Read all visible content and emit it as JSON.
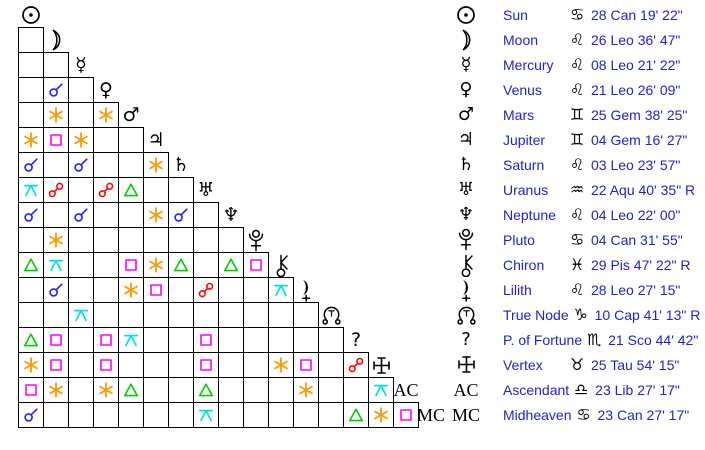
{
  "ui": {
    "background": "#ffffff",
    "grid_line_color": "#000000",
    "glyph_color": "#000000",
    "legend_text_color": "#2222cc"
  },
  "sign_glyphs": {
    "Can": "♋",
    "Leo": "♌",
    "Gem": "♊",
    "Aqu": "♒",
    "Pis": "♓",
    "Cap": "♑",
    "Sco": "♏",
    "Tau": "♉",
    "Lib": "♎"
  },
  "planet_glyphs_unicode": {
    "mercury": "☿",
    "venus": "♀",
    "mars": "♂",
    "jupiter": "♃",
    "saturn": "♄",
    "uranus": "♅",
    "neptune": "♆"
  },
  "chart_data": {
    "type": "table",
    "title": "Astrological aspect grid (aspectarian) with planet positions",
    "aspect_types": {
      "con": "conjunction",
      "sex": "sextile",
      "squ": "square",
      "tri": "trine",
      "opp": "opposition",
      "qui": "quincunx"
    },
    "aspect_colors": {
      "con": "#2222ff",
      "sex": "#ff9900",
      "squ": "#ff00ff",
      "tri": "#00cc00",
      "opp": "#ff0000",
      "qui": "#00e0e0"
    },
    "planets": [
      {
        "id": "sun",
        "name": "Sun",
        "sign": "Can",
        "position": "28 Can 19' 22\""
      },
      {
        "id": "moon",
        "name": "Moon",
        "sign": "Leo",
        "position": "26 Leo 36' 47\""
      },
      {
        "id": "mercury",
        "name": "Mercury",
        "sign": "Leo",
        "position": "08 Leo 21' 22\""
      },
      {
        "id": "venus",
        "name": "Venus",
        "sign": "Leo",
        "position": "21 Leo 26' 09\""
      },
      {
        "id": "mars",
        "name": "Mars",
        "sign": "Gem",
        "position": "25 Gem 38' 25\""
      },
      {
        "id": "jupiter",
        "name": "Jupiter",
        "sign": "Gem",
        "position": "04 Gem 16' 27\""
      },
      {
        "id": "saturn",
        "name": "Saturn",
        "sign": "Leo",
        "position": "03 Leo 23' 57\""
      },
      {
        "id": "uranus",
        "name": "Uranus",
        "sign": "Aqu",
        "position": "22 Aqu 40' 35\" R"
      },
      {
        "id": "neptune",
        "name": "Neptune",
        "sign": "Leo",
        "position": "04 Leo 22' 00\""
      },
      {
        "id": "pluto",
        "name": "Pluto",
        "sign": "Can",
        "position": "04 Can 31' 55\""
      },
      {
        "id": "chiron",
        "name": "Chiron",
        "sign": "Pis",
        "position": "29 Pis 47' 22\" R"
      },
      {
        "id": "lilith",
        "name": "Lilith",
        "sign": "Leo",
        "position": "28 Leo 27' 15\""
      },
      {
        "id": "truenode",
        "name": "True Node",
        "sign": "Cap",
        "position": "10 Cap 41' 13\" R"
      },
      {
        "id": "fortune",
        "name": "P. of Fortune",
        "sign": "Sco",
        "position": "21 Sco 44' 42\""
      },
      {
        "id": "vertex",
        "name": "Vertex",
        "sign": "Tau",
        "position": "25 Tau 54' 15\""
      },
      {
        "id": "ascendant",
        "name": "Ascendant",
        "label": "AC",
        "sign": "Lib",
        "position": "23 Lib 27' 17\""
      },
      {
        "id": "midheaven",
        "name": "Midheaven",
        "label": "MC",
        "sign": "Can",
        "position": "23 Can 27' 17\""
      }
    ],
    "grid_rows": [
      {
        "planet": "moon",
        "cells": [
          ""
        ]
      },
      {
        "planet": "mercury",
        "cells": [
          "",
          ""
        ]
      },
      {
        "planet": "venus",
        "cells": [
          "",
          "con",
          ""
        ]
      },
      {
        "planet": "mars",
        "cells": [
          "",
          "sex",
          "",
          "sex"
        ]
      },
      {
        "planet": "jupiter",
        "cells": [
          "sex",
          "squ",
          "sex",
          "",
          ""
        ]
      },
      {
        "planet": "saturn",
        "cells": [
          "con",
          "",
          "con",
          "",
          "",
          "sex"
        ]
      },
      {
        "planet": "uranus",
        "cells": [
          "qui",
          "opp",
          "",
          "opp",
          "tri",
          "",
          ""
        ]
      },
      {
        "planet": "neptune",
        "cells": [
          "con",
          "",
          "con",
          "",
          "",
          "sex",
          "con",
          ""
        ]
      },
      {
        "planet": "pluto",
        "cells": [
          "",
          "sex",
          "",
          "",
          "",
          "",
          "",
          "",
          ""
        ]
      },
      {
        "planet": "chiron",
        "cells": [
          "tri",
          "qui",
          "",
          "",
          "squ",
          "sex",
          "tri",
          "",
          "tri",
          "squ"
        ]
      },
      {
        "planet": "lilith",
        "cells": [
          "",
          "con",
          "",
          "",
          "sex",
          "squ",
          "",
          "opp",
          "",
          "",
          "qui"
        ]
      },
      {
        "planet": "truenode",
        "cells": [
          "",
          "",
          "qui",
          "",
          "",
          "",
          "",
          "",
          "",
          "",
          "",
          ""
        ]
      },
      {
        "planet": "fortune",
        "cells": [
          "tri",
          "squ",
          "",
          "squ",
          "qui",
          "",
          "",
          "squ",
          "",
          "",
          "",
          "",
          ""
        ]
      },
      {
        "planet": "vertex",
        "cells": [
          "sex",
          "squ",
          "",
          "squ",
          "",
          "",
          "",
          "squ",
          "",
          "",
          "sex",
          "squ",
          "",
          "opp"
        ]
      },
      {
        "planet": "ascendant",
        "cells": [
          "squ",
          "sex",
          "",
          "sex",
          "tri",
          "",
          "",
          "tri",
          "",
          "",
          "",
          "sex",
          "",
          "",
          "qui"
        ]
      },
      {
        "planet": "midheaven",
        "cells": [
          "con",
          "",
          "",
          "",
          "",
          "",
          "",
          "qui",
          "",
          "",
          "",
          "",
          "",
          "tri",
          "sex",
          "squ"
        ]
      }
    ]
  }
}
